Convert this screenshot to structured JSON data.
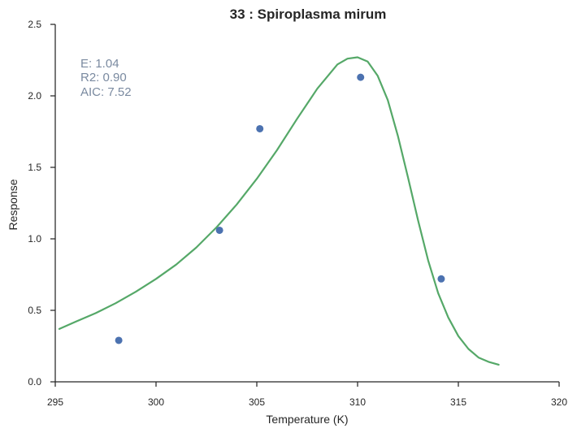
{
  "chart_data": {
    "type": "scatter",
    "title": "33 : Spiroplasma mirum",
    "xlabel": "Temperature (K)",
    "ylabel": "Response",
    "xlim": [
      295,
      320
    ],
    "ylim": [
      0.0,
      2.5
    ],
    "x_ticks": [
      "295",
      "300",
      "305",
      "310",
      "315",
      "320"
    ],
    "y_ticks": [
      "0.0",
      "0.5",
      "1.0",
      "1.5",
      "2.0",
      "2.5"
    ],
    "grid": false,
    "points": {
      "color": "#4c72b0",
      "x": [
        298.15,
        303.15,
        305.15,
        310.15,
        314.15
      ],
      "y": [
        0.29,
        1.06,
        1.77,
        2.13,
        0.72
      ]
    },
    "fit": {
      "color": "#55a868",
      "x": [
        295.2,
        296.0,
        297.0,
        298.0,
        299.0,
        300.0,
        301.0,
        302.0,
        303.0,
        304.0,
        305.0,
        306.0,
        307.0,
        308.0,
        309.0,
        309.5,
        310.0,
        310.5,
        311.0,
        311.5,
        312.0,
        312.5,
        313.0,
        313.5,
        314.0,
        314.5,
        315.0,
        315.5,
        316.0,
        316.5,
        317.0
      ],
      "y": [
        0.37,
        0.42,
        0.48,
        0.55,
        0.63,
        0.72,
        0.82,
        0.94,
        1.08,
        1.24,
        1.42,
        1.62,
        1.84,
        2.05,
        2.22,
        2.26,
        2.27,
        2.24,
        2.14,
        1.97,
        1.72,
        1.43,
        1.13,
        0.85,
        0.62,
        0.45,
        0.32,
        0.23,
        0.17,
        0.14,
        0.12
      ]
    },
    "annotations": {
      "color": "#7a8aa0",
      "lines": [
        "E:  1.04",
        "R2:  0.90",
        "AIC: 7.52"
      ]
    }
  }
}
